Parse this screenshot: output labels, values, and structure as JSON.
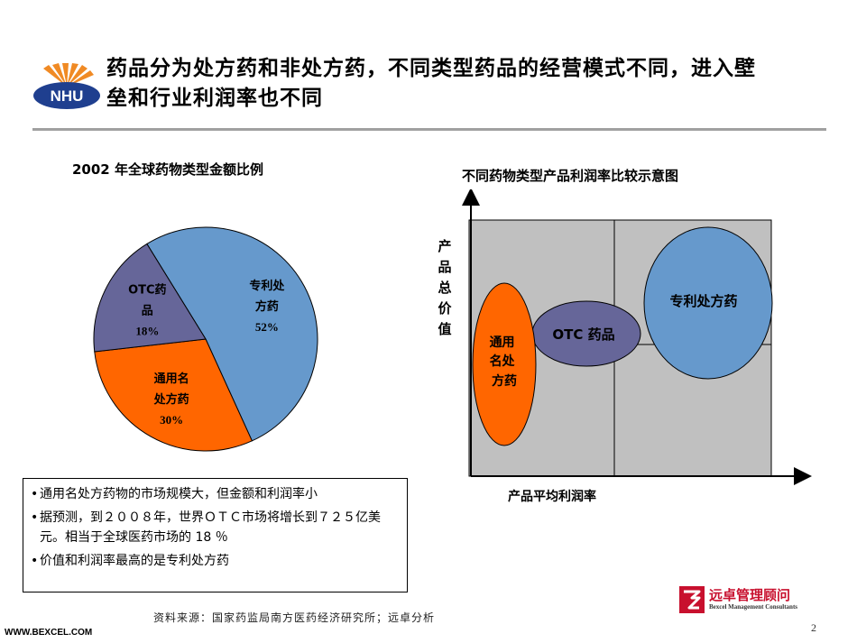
{
  "header": {
    "logo_text": "NHU",
    "title_line1": "药品分为处方药和非处方药，不同类型药品的经营模式不同，进入壁",
    "title_line2": "垒和行业利润率也不同"
  },
  "pie_chart": {
    "title": "2002 年全球药物类型金额比例",
    "colors": {
      "patent": "#6699cc",
      "generic": "#ff6600",
      "otc": "#666699"
    }
  },
  "bubble_chart": {
    "title": "不同药物类型产品利润率比较示意图",
    "y_axis_label": [
      "产",
      "品",
      "总",
      "价",
      "值"
    ],
    "x_axis_label": "产品平均利润率",
    "bubbles": {
      "generic": [
        "通用",
        "名处",
        "方药"
      ],
      "otc": "OTC 药品",
      "patent": "专利处方药"
    },
    "colors": {
      "generic": "#ff6600",
      "otc": "#666699",
      "patent": "#6699cc",
      "plot_bg": "#c0c0c0"
    }
  },
  "chart_data": {
    "type": "pie",
    "title": "2002 年全球药物类型金额比例",
    "slices": [
      {
        "label_lines": [
          "专利处",
          "方药"
        ],
        "value": 52,
        "value_text": "52%"
      },
      {
        "label_lines": [
          "通用名",
          "处方药"
        ],
        "value": 30,
        "value_text": "30%"
      },
      {
        "label_lines": [
          "OTC药",
          "品"
        ],
        "value": 18,
        "value_text": "18%"
      }
    ]
  },
  "notes": {
    "bullet": "•",
    "items": [
      "通用名处方药物的市场规模大，但金额和利润率小",
      "据预测，到２００８年，世界ＯＴＣ市场将增长到７２５亿美元。相当于全球医药市场的 18 ％",
      "价值和利润率最高的是专利处方药"
    ]
  },
  "footer": {
    "source": "资料来源：国家药监局南方医药经济研究所；远卓分析",
    "brand_name": "远卓管理顾问",
    "brand_sub": "Bexcel Management Consultants",
    "website": "WWW.BEXCEL.COM",
    "page_number": "2"
  }
}
